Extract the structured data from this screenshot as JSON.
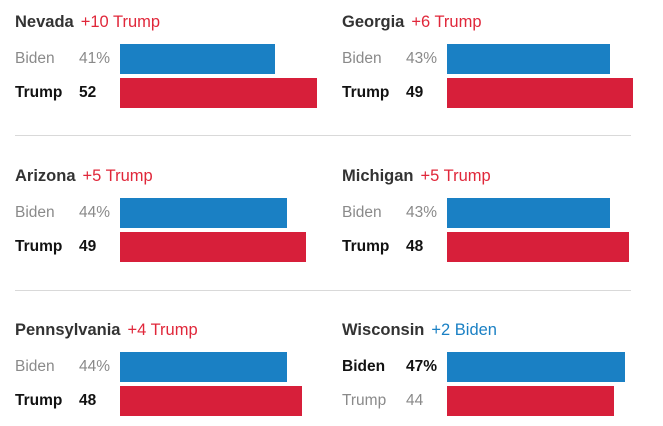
{
  "chart_data": {
    "type": "bar",
    "title": "",
    "scale_max": 52,
    "panels": [
      {
        "state": "Nevada",
        "margin": "+10 Trump",
        "margin_party": "trump",
        "rows": [
          {
            "name": "Biden",
            "party": "biden",
            "value": 41,
            "label": "41%",
            "winner": false
          },
          {
            "name": "Trump",
            "party": "trump",
            "value": 52,
            "label": "52",
            "winner": true
          }
        ]
      },
      {
        "state": "Georgia",
        "margin": "+6 Trump",
        "margin_party": "trump",
        "rows": [
          {
            "name": "Biden",
            "party": "biden",
            "value": 43,
            "label": "43%",
            "winner": false
          },
          {
            "name": "Trump",
            "party": "trump",
            "value": 49,
            "label": "49",
            "winner": true
          }
        ]
      },
      {
        "state": "Arizona",
        "margin": "+5 Trump",
        "margin_party": "trump",
        "rows": [
          {
            "name": "Biden",
            "party": "biden",
            "value": 44,
            "label": "44%",
            "winner": false
          },
          {
            "name": "Trump",
            "party": "trump",
            "value": 49,
            "label": "49",
            "winner": true
          }
        ]
      },
      {
        "state": "Michigan",
        "margin": "+5 Trump",
        "margin_party": "trump",
        "rows": [
          {
            "name": "Biden",
            "party": "biden",
            "value": 43,
            "label": "43%",
            "winner": false
          },
          {
            "name": "Trump",
            "party": "trump",
            "value": 48,
            "label": "48",
            "winner": true
          }
        ]
      },
      {
        "state": "Pennsylvania",
        "margin": "+4 Trump",
        "margin_party": "trump",
        "rows": [
          {
            "name": "Biden",
            "party": "biden",
            "value": 44,
            "label": "44%",
            "winner": false
          },
          {
            "name": "Trump",
            "party": "trump",
            "value": 48,
            "label": "48",
            "winner": true
          }
        ]
      },
      {
        "state": "Wisconsin",
        "margin": "+2 Biden",
        "margin_party": "biden",
        "rows": [
          {
            "name": "Biden",
            "party": "biden",
            "value": 47,
            "label": "47%",
            "winner": true
          },
          {
            "name": "Trump",
            "party": "trump",
            "value": 44,
            "label": "44",
            "winner": false
          }
        ]
      }
    ]
  },
  "colors": {
    "biden": "#1a80c4",
    "trump": "#d71f3a"
  }
}
